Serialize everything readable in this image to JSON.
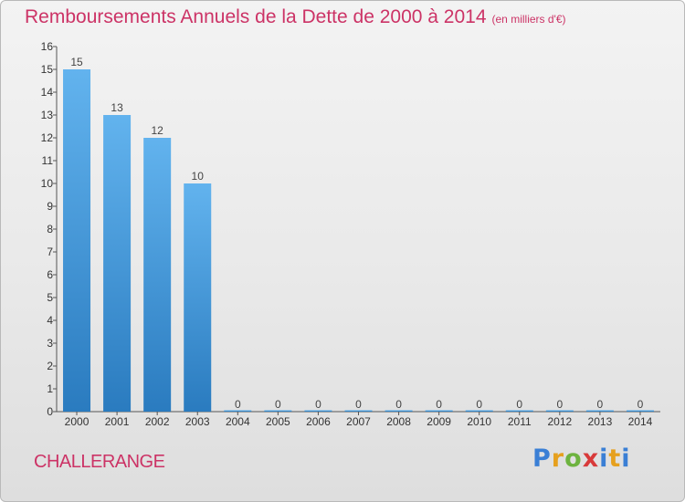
{
  "header": {
    "title": "Remboursements Annuels de la Dette de 2000 à 2014",
    "subtitle": "(en milliers d'€)"
  },
  "commune": "CHALLERANGE",
  "logo": {
    "text": "Proxiti"
  },
  "colors": {
    "bar_top": "#62b3ee",
    "bar_bottom": "#2a7bbf",
    "title": "#cc3366"
  },
  "chart_data": {
    "type": "bar",
    "title": "Remboursements Annuels de la Dette de 2000 à 2014",
    "subtitle": "(en milliers d'€)",
    "categories": [
      "2000",
      "2001",
      "2002",
      "2003",
      "2004",
      "2005",
      "2006",
      "2007",
      "2008",
      "2009",
      "2010",
      "2011",
      "2012",
      "2013",
      "2014"
    ],
    "values": [
      15,
      13,
      12,
      10,
      0,
      0,
      0,
      0,
      0,
      0,
      0,
      0,
      0,
      0,
      0
    ],
    "ylim": [
      0,
      16
    ],
    "yticks": [
      0,
      1,
      2,
      3,
      4,
      5,
      6,
      7,
      8,
      9,
      10,
      11,
      12,
      13,
      14,
      15,
      16
    ],
    "grid": false,
    "data_labels": true
  }
}
